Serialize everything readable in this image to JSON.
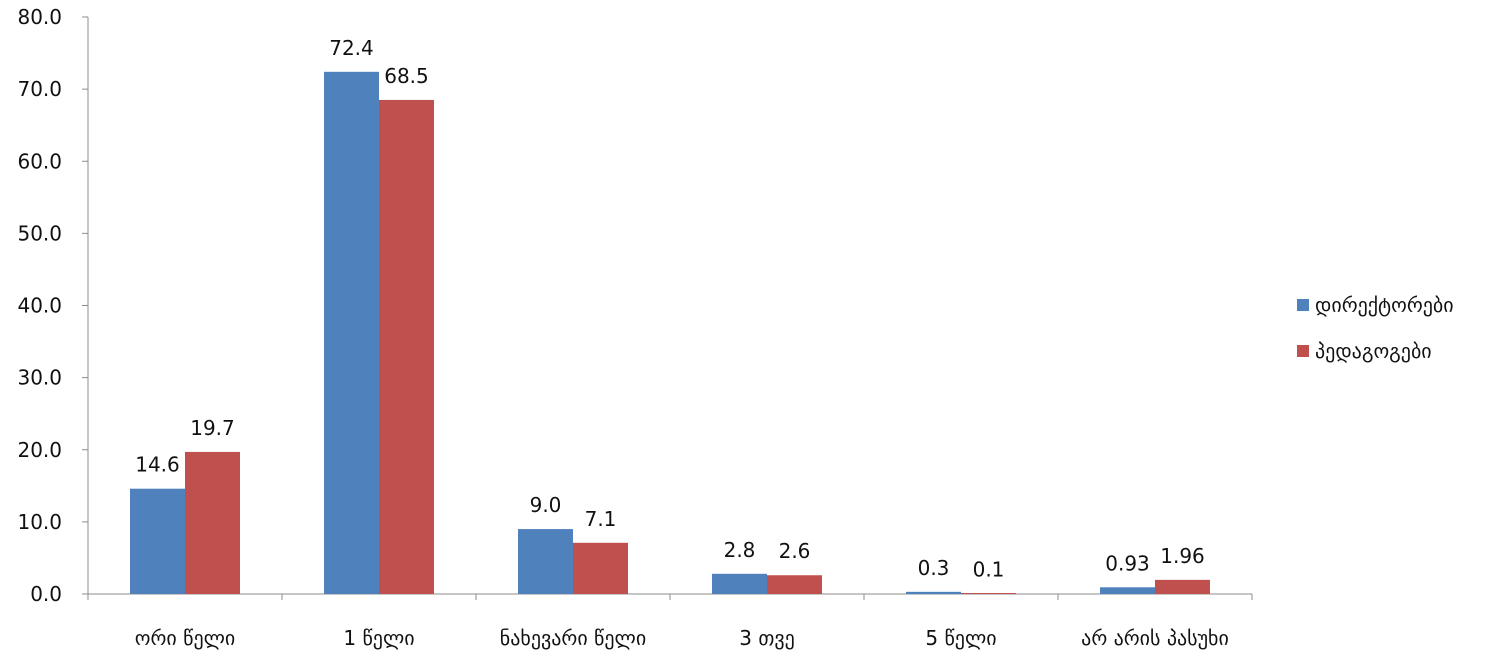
{
  "chart_data": {
    "type": "bar",
    "categories": [
      "ორი წელი",
      "1 წელი",
      "ნახევარი წელი",
      "3 თვე",
      "5 წელი",
      "არ არის პასუხი"
    ],
    "series": [
      {
        "name": "დირექტორები",
        "color": "#4f81bd",
        "values": [
          14.6,
          72.4,
          9.0,
          2.8,
          0.3,
          0.93
        ],
        "labels": [
          "14.6",
          "72.4",
          "9.0",
          "2.8",
          "0.3",
          "0.93"
        ]
      },
      {
        "name": "პედაგოგები",
        "color": "#c0504d",
        "values": [
          19.7,
          68.5,
          7.1,
          2.6,
          0.1,
          1.96
        ],
        "labels": [
          "19.7",
          "68.5",
          "7.1",
          "2.6",
          "0.1",
          "1.96"
        ]
      }
    ],
    "yticks": [
      "0.0",
      "10.0",
      "20.0",
      "30.0",
      "40.0",
      "50.0",
      "60.0",
      "70.0",
      "80.0"
    ],
    "ylim": [
      0,
      80
    ],
    "grid": false,
    "legend_position": "right"
  }
}
